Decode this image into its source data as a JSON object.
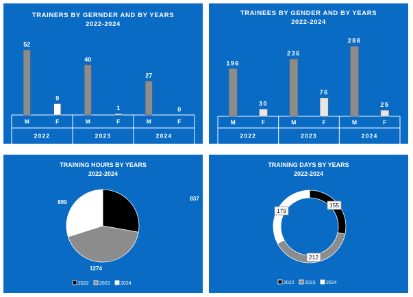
{
  "colors": {
    "panel": "#0a6bc4",
    "male_bar": "#8c8c8c",
    "female_bar_light": "#e6e6e6",
    "white": "#ffffff",
    "black": "#000000",
    "gray": "#8c8c8c"
  },
  "chart_data": [
    {
      "type": "bar",
      "title": "TRAINERS BY GERNDER AND BY YEARS",
      "subtitle": "2022-2024",
      "groups": [
        "2022",
        "2023",
        "2024"
      ],
      "categories": [
        "M",
        "F"
      ],
      "series": [
        {
          "year": "2022",
          "values": [
            52,
            9
          ]
        },
        {
          "year": "2023",
          "values": [
            40,
            1
          ]
        },
        {
          "year": "2024",
          "values": [
            27,
            0
          ]
        }
      ],
      "ylim": [
        0,
        58
      ]
    },
    {
      "type": "bar",
      "title": "TRAINEES BY GENDER AND BY YEARS",
      "subtitle": "2022-2024",
      "groups": [
        "2022",
        "2023",
        "2024"
      ],
      "categories": [
        "M",
        "F"
      ],
      "series": [
        {
          "year": "2022",
          "values": [
            196,
            30
          ]
        },
        {
          "year": "2023",
          "values": [
            236,
            76
          ]
        },
        {
          "year": "2024",
          "values": [
            288,
            25
          ]
        }
      ],
      "ylim": [
        0,
        315
      ]
    },
    {
      "type": "pie",
      "title": "TRAINING HOURS BY YEARS",
      "subtitle": "2022-2024",
      "labels": [
        "2022",
        "2023",
        "2024"
      ],
      "values": [
        837,
        1274,
        899
      ],
      "legend": "bottom"
    },
    {
      "type": "pie",
      "donut": true,
      "title": "TRAINING DAYS BY YEARS",
      "subtitle": "2022-2024",
      "labels": [
        "2022",
        "2023",
        "2024"
      ],
      "values": [
        155,
        212,
        179
      ],
      "legend": "bottom"
    }
  ]
}
